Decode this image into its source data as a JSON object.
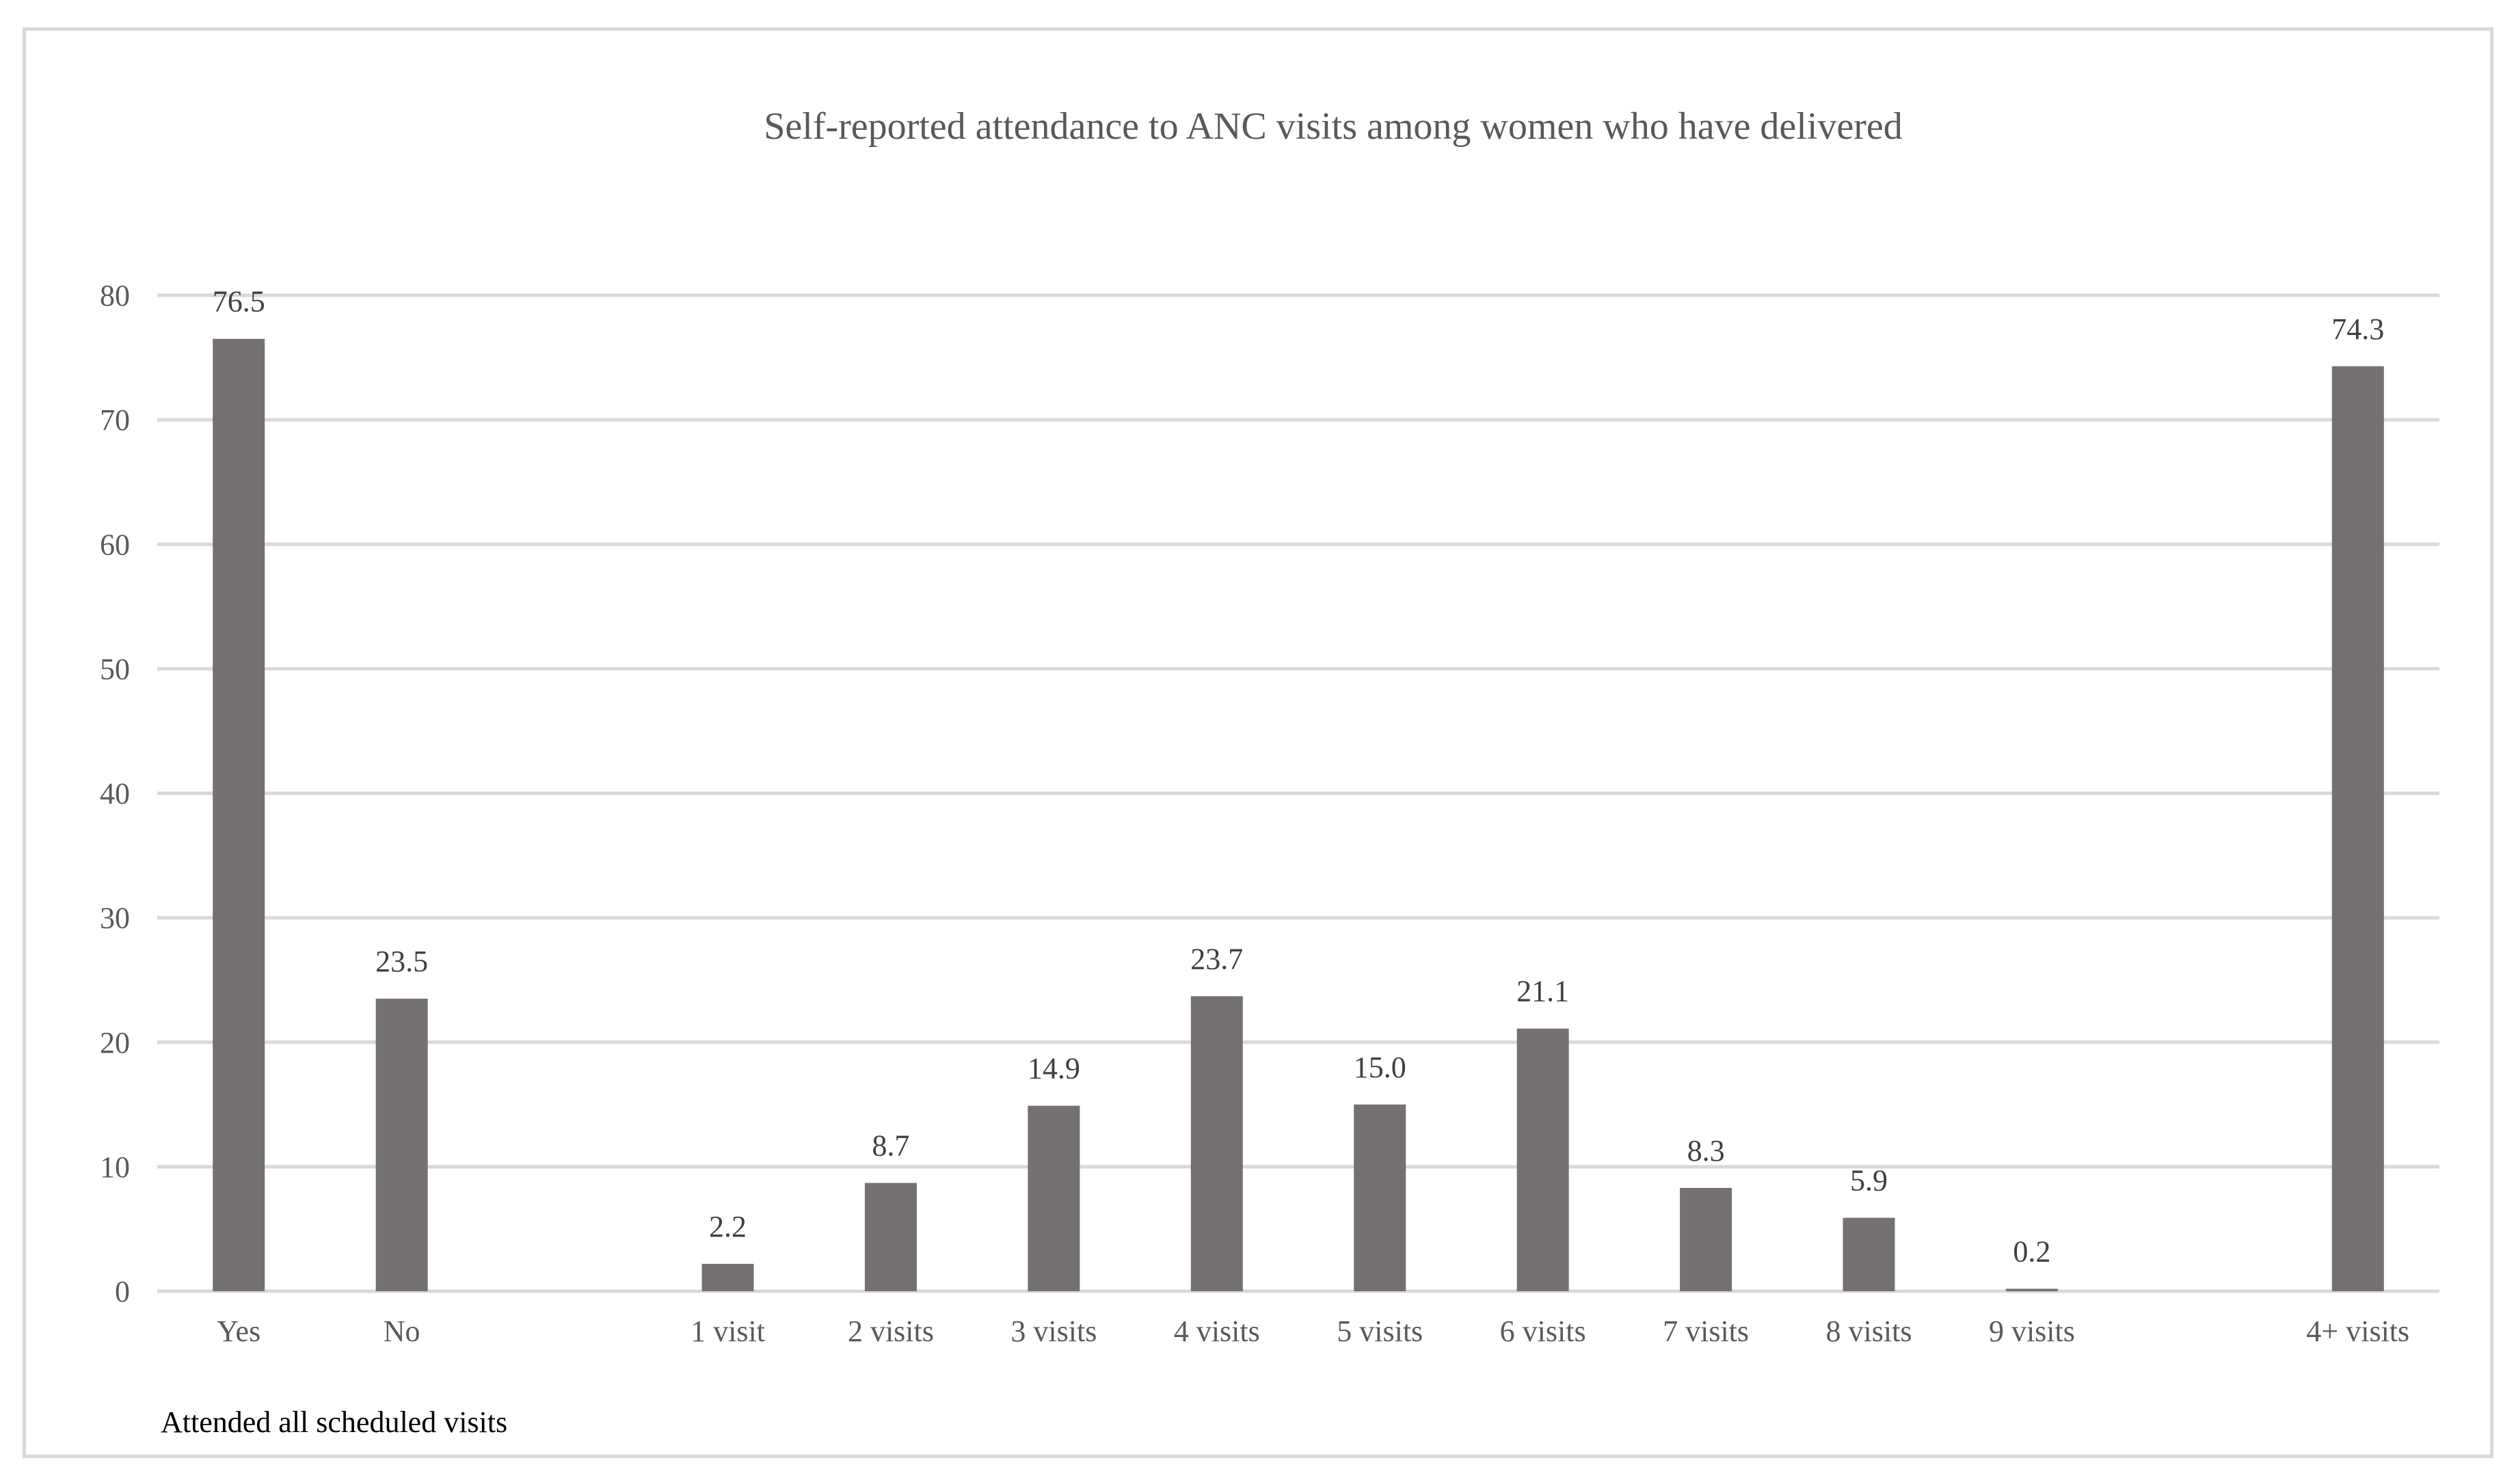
{
  "chart_data": {
    "type": "bar",
    "title": "Self-reported attendance to ANC visits among  women who have delivered",
    "xlabel": "",
    "ylabel": "",
    "ylim": [
      0,
      80
    ],
    "yticks": [
      0,
      10,
      20,
      30,
      40,
      50,
      60,
      70,
      80
    ],
    "grid": true,
    "categories": [
      "Yes",
      "No",
      "",
      "1 visit",
      "2 visits",
      "3 visits",
      "4 visits",
      "5 visits",
      "6 visits",
      "7 visits",
      "8 visits",
      "9 visits",
      "",
      "4+ visits"
    ],
    "values": [
      76.5,
      23.5,
      null,
      2.2,
      8.7,
      14.9,
      23.7,
      15.0,
      21.1,
      8.3,
      5.9,
      0.2,
      null,
      74.3
    ],
    "data_labels": [
      "76.5",
      "23.5",
      "",
      "2.2",
      "8.7",
      "14.9",
      "23.7",
      "15.0",
      "21.1",
      "8.3",
      "5.9",
      "0.2",
      "",
      "74.3"
    ],
    "bar_color": "#767171",
    "grid_color": "#d9d9d9",
    "annotation": "Attended all scheduled visits"
  }
}
